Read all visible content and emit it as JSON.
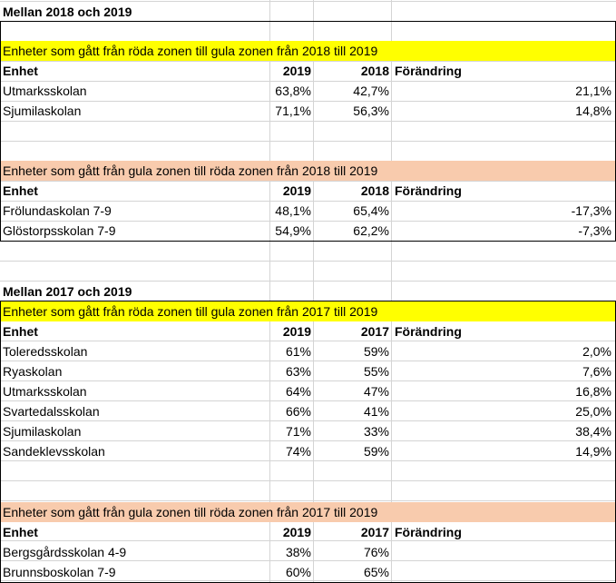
{
  "sections": [
    {
      "title": "Mellan 2018 och 2019",
      "tables": [
        {
          "caption": "Enheter som gått från röda zonen till gula zonen från 2018 till 2019",
          "color": "#ffff00",
          "headers": [
            "Enhet",
            "2019",
            "2018",
            "Förändring"
          ],
          "rows": [
            [
              "Utmarksskolan",
              "63,8%",
              "42,7%",
              "21,1%"
            ],
            [
              "Sjumilaskolan",
              "71,1%",
              "56,3%",
              "14,8%"
            ]
          ]
        },
        {
          "caption": "Enheter som gått från gula zonen till röda zonen från 2018 till 2019",
          "color": "#f8cbad",
          "headers": [
            "Enhet",
            "2019",
            "2018",
            "Förändring"
          ],
          "rows": [
            [
              "Frölundaskolan 7-9",
              "48,1%",
              "65,4%",
              "-17,3%"
            ],
            [
              "Glöstorpsskolan 7-9",
              "54,9%",
              "62,2%",
              "-7,3%"
            ]
          ]
        }
      ]
    },
    {
      "title": "Mellan 2017 och 2019",
      "tables": [
        {
          "caption": "Enheter som gått från röda zonen till gula zonen från 2017 till 2019",
          "color": "#ffff00",
          "headers": [
            "Enhet",
            "2019",
            "2017",
            "Förändring"
          ],
          "rows": [
            [
              "Toleredsskolan",
              "61%",
              "59%",
              "2,0%"
            ],
            [
              "Ryaskolan",
              "63%",
              "55%",
              "7,6%"
            ],
            [
              "Utmarksskolan",
              "64%",
              "47%",
              "16,8%"
            ],
            [
              "Svartedalsskolan",
              "66%",
              "41%",
              "25,0%"
            ],
            [
              "Sjumilaskolan",
              "71%",
              "33%",
              "38,4%"
            ],
            [
              "Sandeklevsskolan",
              "74%",
              "59%",
              "14,9%"
            ]
          ]
        },
        {
          "caption": "Enheter som gått från gula zonen till röda zonen från 2017 till 2019",
          "color": "#f8cbad",
          "headers": [
            "Enhet",
            "2019",
            "2017",
            "Förändring"
          ],
          "rows": [
            [
              "Bergsgårdsskolan 4-9",
              "38%",
              "76%",
              ""
            ],
            [
              "Brunnsboskolan 7-9",
              "60%",
              "65%",
              ""
            ]
          ]
        }
      ]
    }
  ]
}
